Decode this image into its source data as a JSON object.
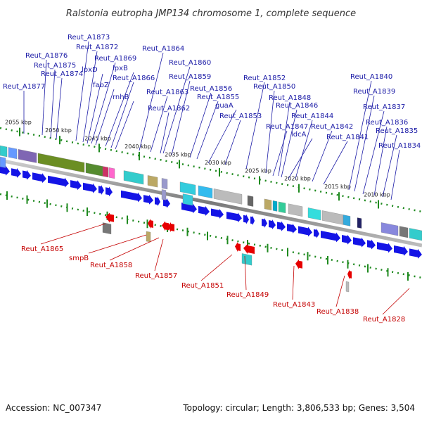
{
  "title": "Ralstonia eutropha JMP134 chromosome 1, complete sequence",
  "footer": {
    "accession": "Accession: NC_007347",
    "summary": "Topology: circular; Length: 3,806,533 bp; Genes: 3,504"
  },
  "scale_ticks": [
    "2055 kbp",
    "2050 kbp",
    "2045 kbp",
    "2040 kbp",
    "2035 kbp",
    "2030 kbp",
    "2025 kbp",
    "2020 kbp",
    "2015 kbp",
    "2010 kbp"
  ],
  "top_labels": [
    "Reut_A1873",
    "Reut_A1872",
    "Reut_A1876",
    "Reut_A1869",
    "Reut_A1875",
    "lpxD",
    "lpxB",
    "Reut_A1874",
    "Reut_A1866",
    "fabZ",
    "Reut_A1877",
    "rnhB",
    "Reut_A1864",
    "Reut_A1860",
    "Reut_A1859",
    "Reut_A1863",
    "Reut_A1856",
    "Reut_A1855",
    "Reut_A1862",
    "guaA",
    "Reut_A1853",
    "Reut_A1852",
    "Reut_A1850",
    "Reut_A1848",
    "Reut_A1846",
    "Reut_A1847",
    "ldcA",
    "Reut_A1844",
    "Reut_A1842",
    "Reut_A1841",
    "Reut_A1840",
    "Reut_A1839",
    "Reut_A1837",
    "Reut_A1836",
    "Reut_A1835",
    "Reut_A1834"
  ],
  "bottom_labels": [
    "Reut_A1865",
    "smpB",
    "Reut_A1858",
    "Reut_A1857",
    "Reut_A1851",
    "Reut_A1849",
    "Reut_A1843",
    "Reut_A1838",
    "Reut_A1828"
  ],
  "colors": {
    "forward_gene": "#1414e6",
    "reverse_gene": "#e60000",
    "tick": "#1f8a1f",
    "backbone": "#888888",
    "label_forward": "#1a1aa6",
    "label_reverse": "#c40000"
  }
}
